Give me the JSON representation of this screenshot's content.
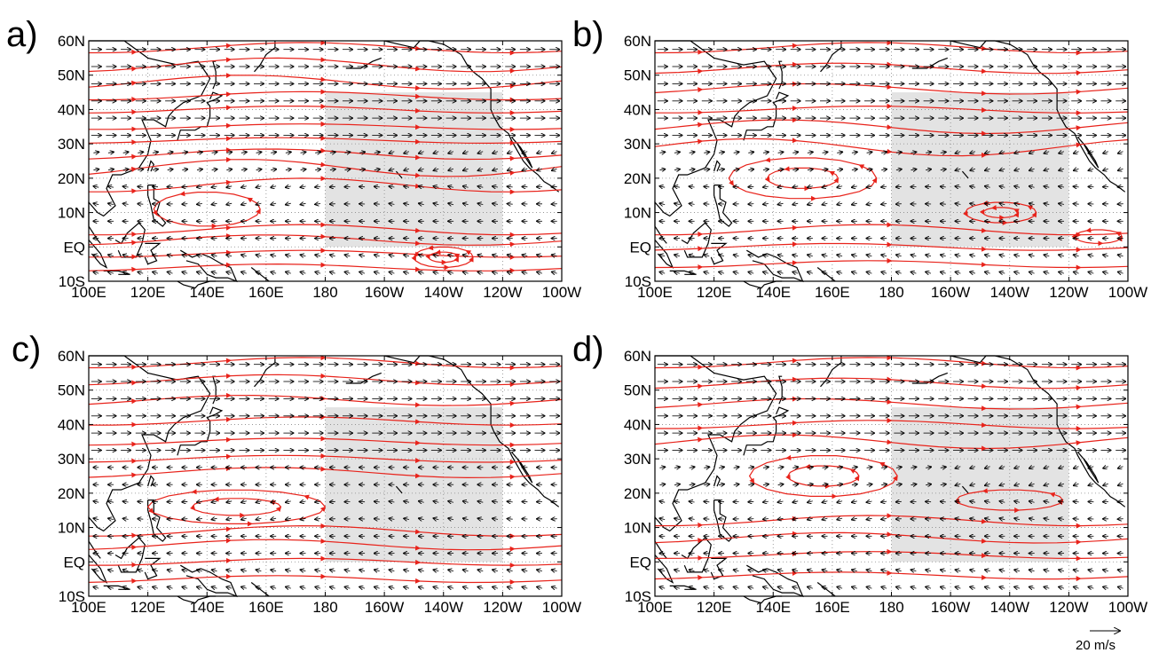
{
  "figure": {
    "panels": [
      {
        "id": "a",
        "letter": "a)"
      },
      {
        "id": "b",
        "letter": "b)"
      },
      {
        "id": "c",
        "letter": "c)"
      },
      {
        "id": "d",
        "letter": "d)"
      }
    ],
    "lat_labels": [
      "60N",
      "50N",
      "40N",
      "30N",
      "20N",
      "10N",
      "EQ",
      "10S"
    ],
    "lon_labels": [
      "100E",
      "120E",
      "140E",
      "160E",
      "180",
      "160W",
      "140W",
      "120W",
      "100W"
    ],
    "map_extent": {
      "lon_min": 100,
      "lon_max": 260,
      "lat_min": -10,
      "lat_max": 60
    },
    "shaded_region": {
      "lon_min": 180,
      "lon_max": 240,
      "lat_min": 0,
      "lat_max": 45,
      "color": "#e3e3e3"
    },
    "streamline_color": "#e8231b",
    "vector_color": "#000000",
    "reference_vector": {
      "label": "20 m/s"
    }
  }
}
